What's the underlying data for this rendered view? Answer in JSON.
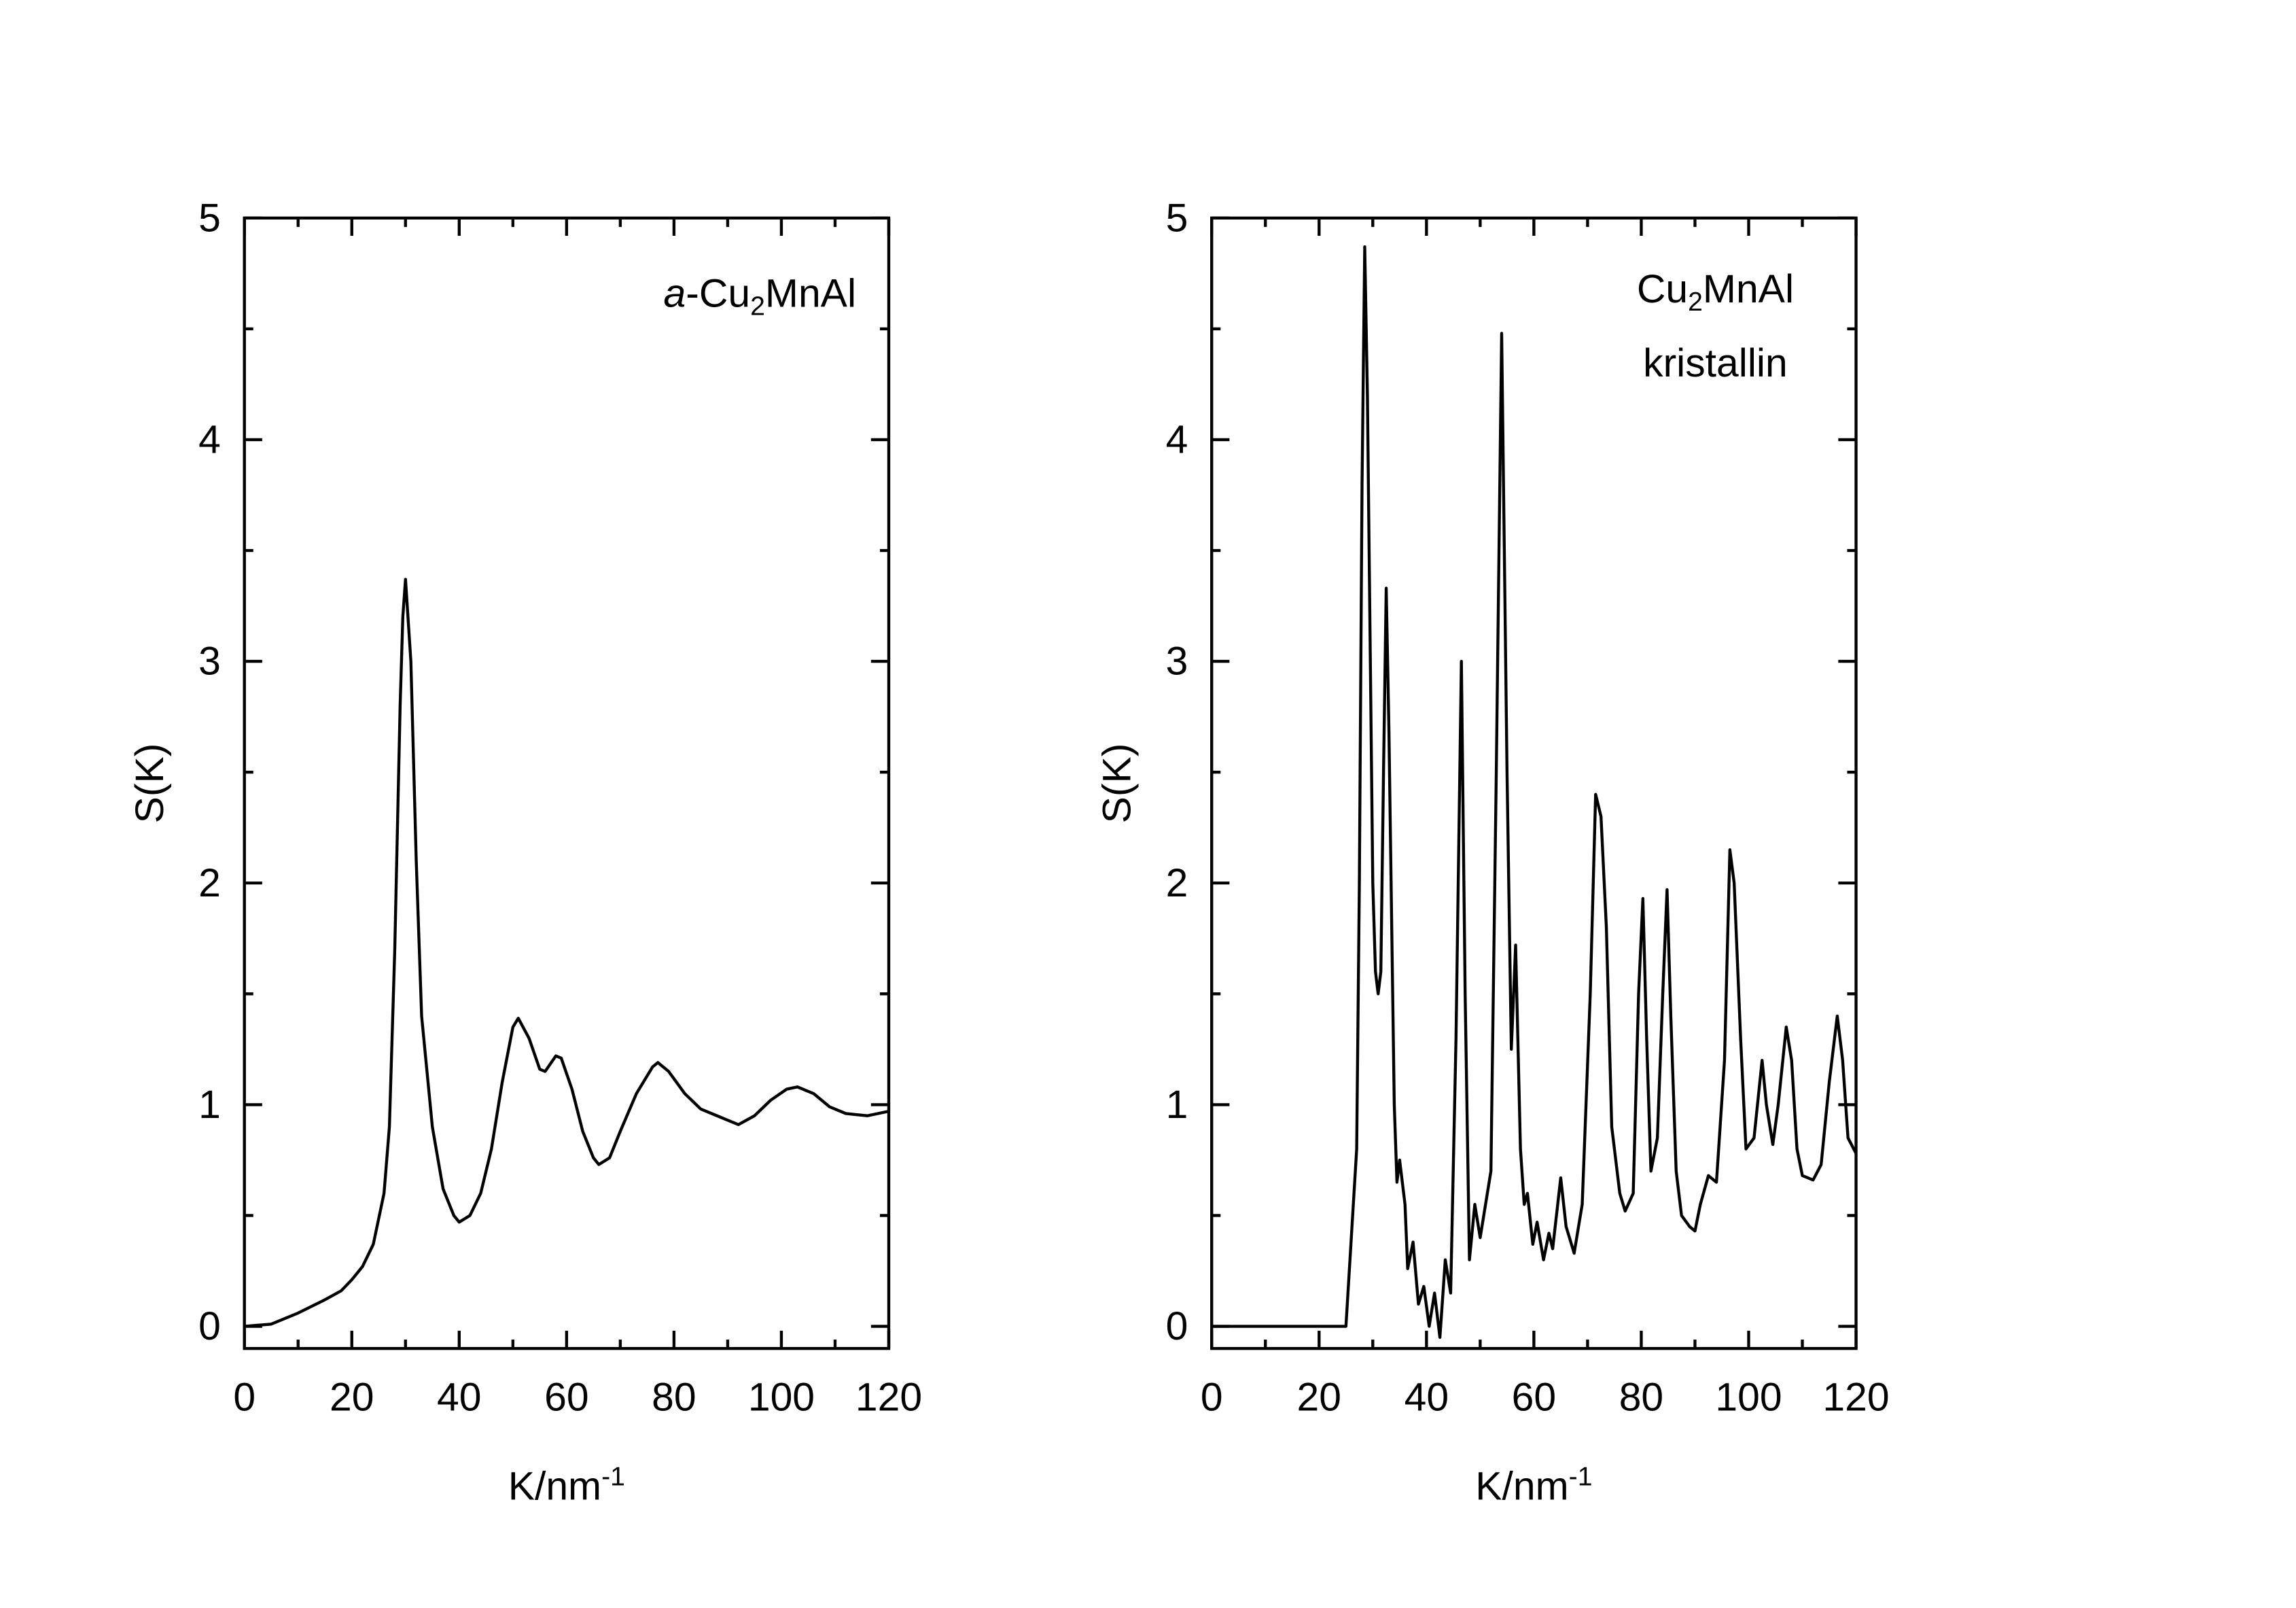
{
  "chart_data": [
    {
      "type": "line",
      "color": "#000000",
      "annotation": [
        [
          {
            "text": "a",
            "style": "italic"
          },
          {
            "text": "-Cu",
            "style": "normal"
          },
          {
            "text": "2",
            "style": "sub"
          },
          {
            "text": "MnAl",
            "style": "normal"
          }
        ]
      ],
      "xlabel": [
        {
          "text": "K/nm",
          "style": "normal"
        },
        {
          "text": "-1",
          "style": "sup"
        }
      ],
      "ylabel": "S(K)",
      "xlim": [
        0,
        120
      ],
      "xticks": [
        0,
        20,
        40,
        60,
        80,
        100,
        120
      ],
      "ylim": [
        -0.1,
        5
      ],
      "yticks": [
        0,
        1,
        2,
        3,
        4,
        5
      ],
      "x": [
        0,
        5,
        10,
        15,
        18,
        20,
        22,
        24,
        26,
        27,
        28,
        29,
        29.5,
        30,
        31,
        32,
        33,
        35,
        37,
        39,
        40,
        42,
        44,
        46,
        48,
        50,
        51,
        53,
        55,
        56,
        58,
        59,
        61,
        63,
        65,
        66,
        68,
        70,
        73,
        76,
        77,
        79,
        82,
        85,
        88,
        90,
        92,
        95,
        98,
        101,
        103,
        106,
        109,
        112,
        116,
        120
      ],
      "values": [
        0,
        0.01,
        0.06,
        0.12,
        0.16,
        0.21,
        0.27,
        0.37,
        0.6,
        0.9,
        1.7,
        2.8,
        3.2,
        3.37,
        3.0,
        2.1,
        1.4,
        0.9,
        0.62,
        0.5,
        0.47,
        0.5,
        0.6,
        0.8,
        1.1,
        1.35,
        1.39,
        1.3,
        1.16,
        1.15,
        1.22,
        1.21,
        1.07,
        0.88,
        0.76,
        0.73,
        0.76,
        0.88,
        1.05,
        1.17,
        1.19,
        1.15,
        1.05,
        0.98,
        0.95,
        0.93,
        0.91,
        0.95,
        1.02,
        1.07,
        1.08,
        1.05,
        0.99,
        0.96,
        0.95,
        0.97
      ]
    },
    {
      "type": "line",
      "color": "#000000",
      "annotation": [
        [
          {
            "text": "Cu",
            "style": "normal"
          },
          {
            "text": "2",
            "style": "sub"
          },
          {
            "text": "MnAl",
            "style": "normal"
          }
        ],
        [
          {
            "text": "kristallin",
            "style": "normal"
          }
        ]
      ],
      "xlabel": [
        {
          "text": "K/nm",
          "style": "normal"
        },
        {
          "text": "-1",
          "style": "sup"
        }
      ],
      "ylabel": "S(K)",
      "xlim": [
        0,
        120
      ],
      "xticks": [
        0,
        20,
        40,
        60,
        80,
        100,
        120
      ],
      "ylim": [
        -0.1,
        5
      ],
      "yticks": [
        0,
        1,
        2,
        3,
        4,
        5
      ],
      "x": [
        0,
        25,
        26,
        27,
        27.5,
        28,
        28.5,
        29,
        30,
        30.5,
        31,
        31.5,
        32,
        32.5,
        33,
        34,
        34.5,
        35,
        36,
        36.5,
        37.5,
        38.5,
        39.5,
        40.5,
        41.5,
        42.5,
        43.5,
        44.5,
        45.5,
        46.5,
        47.2,
        48,
        49,
        50,
        51,
        52,
        53,
        54,
        55,
        55.8,
        56.6,
        57.5,
        58.2,
        58.8,
        59.8,
        60.6,
        61.8,
        62.8,
        63.5,
        65,
        66,
        67.5,
        69,
        70.5,
        71.5,
        72.5,
        73.5,
        74.5,
        76,
        77,
        78.5,
        79.5,
        80.3,
        81,
        81.8,
        83,
        84,
        84.8,
        85.5,
        86.5,
        87.5,
        89,
        90,
        91,
        92.5,
        94,
        95.5,
        96.5,
        97.3,
        98.5,
        99.5,
        101,
        102.5,
        103.3,
        104.5,
        105.5,
        107,
        108,
        109,
        110,
        112,
        113.5,
        115,
        116.5,
        117.5,
        118.5,
        120
      ],
      "values": [
        0,
        0,
        0.4,
        0.8,
        2.0,
        3.8,
        4.87,
        4.2,
        2.0,
        1.6,
        1.5,
        1.6,
        2.5,
        3.33,
        2.7,
        1.0,
        0.65,
        0.75,
        0.55,
        0.26,
        0.38,
        0.1,
        0.18,
        0.0,
        0.15,
        -0.05,
        0.3,
        0.15,
        1.3,
        3.0,
        1.5,
        0.3,
        0.55,
        0.4,
        0.55,
        0.7,
        2.5,
        4.48,
        2.5,
        1.25,
        1.72,
        0.8,
        0.55,
        0.6,
        0.37,
        0.47,
        0.3,
        0.42,
        0.35,
        0.67,
        0.45,
        0.33,
        0.55,
        1.5,
        2.4,
        2.3,
        1.8,
        0.9,
        0.6,
        0.52,
        0.6,
        1.5,
        1.93,
        1.3,
        0.7,
        0.85,
        1.5,
        1.97,
        1.4,
        0.7,
        0.5,
        0.45,
        0.43,
        0.55,
        0.68,
        0.65,
        1.2,
        2.15,
        2.0,
        1.3,
        0.8,
        0.85,
        1.2,
        1.0,
        0.82,
        1.0,
        1.35,
        1.2,
        0.8,
        0.68,
        0.66,
        0.73,
        1.1,
        1.4,
        1.2,
        0.85,
        0.78
      ]
    }
  ]
}
